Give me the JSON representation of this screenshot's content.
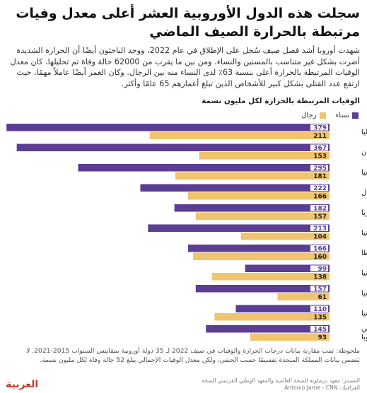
{
  "header": {
    "title": "سجلت هذه الدول الأوروبية العشر أعلى معدل وفيات مرتبطة بالحرارة الصيف الماضي",
    "subtitle": "شهدت أوروبا أشد فصل صيف سُجل على الإطلاق في عام 2022، ووجد الباحثون أيضًا أن الحرارة الشديدة أضرت بشكل غير متناسب بالمسنين والنساء. ومن بين ما يقرب من 62000 حالة وفاة تم تحليلها، كان معدل الوفيات المرتبطة بالحرارة أعلى بنسبة 63٪ لدى النساء منه بين الرجال. وكان العمر أيضًا عاملاً مهمًا، حيث ارتفع عدد القتلى بشكل كبير للأشخاص الذين تبلغ أعمارهم 65 عامًا وأكثر."
  },
  "notes": "ملحوظة: تمت مقارنة بيانات درجات الحرارة والوفيات في صيف 2022 لـ 35 دولة أوروبية بمقاييس السنوات 2015-2021. لا تتضمن بيانات المملكة المتحدة تقسيمًا حسب الجنس، ولكن معدل الوفيات الإجمالي يبلغ 52 حالة وفاة لكل مليون نسمة.",
  "footer": {
    "source_line1": "المصدر: معهد برشلونة للصحة العالمية والمعهد الوطني الفرنسي للصحة",
    "source_line2": "الغرافيك: Antonio Jarne - CNN",
    "logo": "العربية"
  },
  "colors": {
    "women": "#5b3d94",
    "men": "#f2c46d",
    "women_label_bg": "#ffffff"
  },
  "chart_data": {
    "type": "bar",
    "orientation": "horizontal",
    "title": "الوفيات المرتبطة بالحرارة لكل مليون نسمة",
    "legend": [
      "نساء",
      "رجال"
    ],
    "legend_position": "top-right",
    "categories": [
      "إيطاليا",
      "اليونان",
      "إسبانيا",
      "البرتغال",
      "بلغاريا",
      "كرواتيا",
      "مالطا",
      "ليتوانيا",
      "إستونيا",
      "رومانيا",
      "المتوسط في دول أوروبا"
    ],
    "series": [
      {
        "name": "نساء",
        "values": [
          379,
          367,
          295,
          222,
          182,
          213,
          166,
          99,
          157,
          110,
          145
        ]
      },
      {
        "name": "رجال",
        "values": [
          211,
          153,
          181,
          166,
          157,
          104,
          160,
          138,
          61,
          135,
          93
        ]
      }
    ],
    "xlim": [
      0,
      380
    ]
  }
}
